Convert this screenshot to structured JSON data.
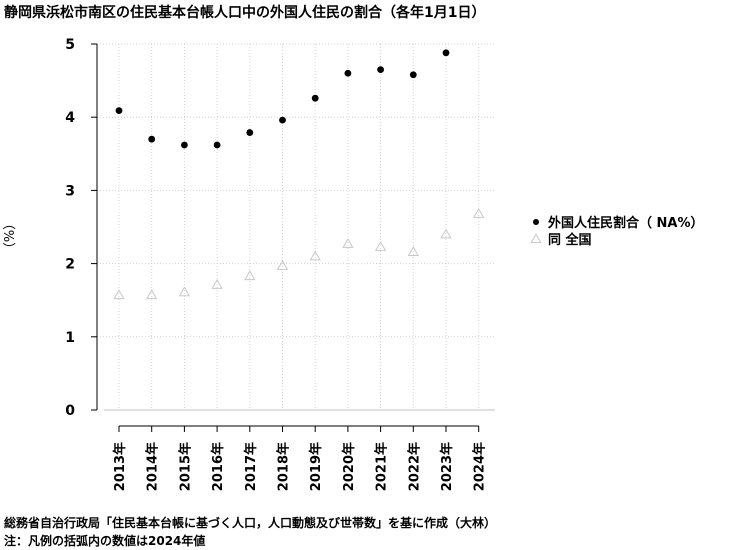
{
  "chart_data": {
    "type": "scatter",
    "title": "静岡県浜松市南区の住民基本台帳人口中の外国人住民の割合（各年1月1日）",
    "ylabel": "（%）",
    "xlabel": "",
    "categories": [
      "2013年",
      "2014年",
      "2015年",
      "2016年",
      "2017年",
      "2018年",
      "2019年",
      "2020年",
      "2021年",
      "2022年",
      "2023年",
      "2024年"
    ],
    "ylim": [
      0,
      5
    ],
    "yticks": [
      "0",
      "1",
      "2",
      "3",
      "4",
      "5"
    ],
    "grid": true,
    "legend_position": "right",
    "series": [
      {
        "name": "外国人住民割合（ NA%）",
        "marker": "filled-circle",
        "color": "#000000",
        "values": [
          4.09,
          3.7,
          3.62,
          3.62,
          3.79,
          3.96,
          4.26,
          4.6,
          4.65,
          4.58,
          4.88,
          null
        ]
      },
      {
        "name": "同 全国",
        "marker": "open-triangle",
        "color": "#c8c8c8",
        "values": [
          1.57,
          1.57,
          1.61,
          1.71,
          1.83,
          1.97,
          2.1,
          2.27,
          2.23,
          2.16,
          2.4,
          2.68
        ]
      }
    ]
  },
  "notes": {
    "source": "総務省自治行政局「住民基本台帳に基づく人口，人口動態及び世帯数」を基に作成（大林）",
    "legend_note": "注：凡例の括弧内の数値は2024年値"
  }
}
